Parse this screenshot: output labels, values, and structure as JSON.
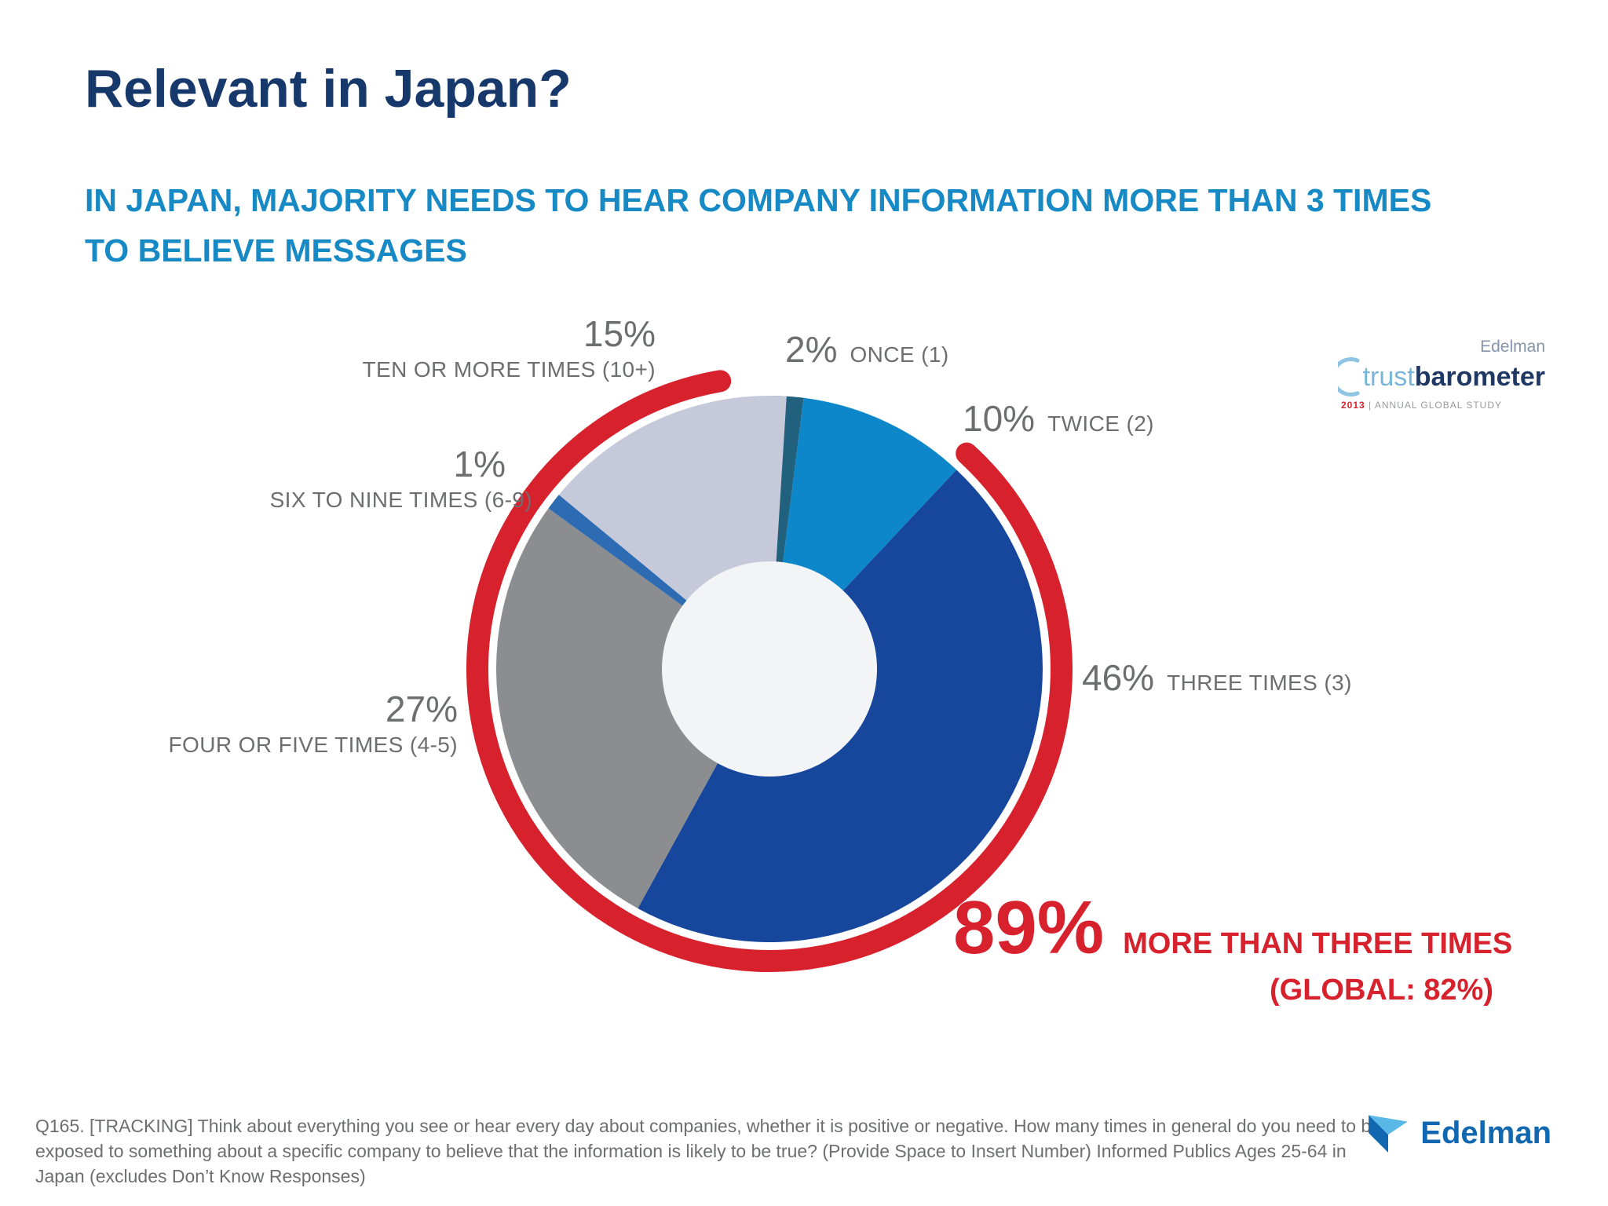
{
  "slide": {
    "title": "Relevant in Japan?",
    "subtitle_lines": [
      "IN JAPAN, MAJORITY NEEDS TO HEAR COMPANY INFORMATION MORE THAN 3 TIMES",
      "TO BELIEVE MESSAGES"
    ],
    "footnote": "Q165. [TRACKING] Think about everything you see or hear every day about companies, whether it is positive or negative.  How many times in general do you need to be exposed to something about a specific company to believe that the information is likely to be true? (Provide Space to Insert Number) Informed Publics Ages 25-64 in Japan (excludes Don’t Know Responses)"
  },
  "theme": {
    "title_color": "#17386b",
    "subtitle_color": "#1789c5",
    "label_color": "#6d6e70",
    "highlight_color": "#d7222d"
  },
  "trustbarometer_logo": {
    "edelman": "Edelman",
    "trust": "trust",
    "barometer": "barometer",
    "year": "2013",
    "tagline": "| ANNUAL GLOBAL STUDY"
  },
  "edelman_logo": {
    "label": "Edelman"
  },
  "chart_data": {
    "type": "pie",
    "units": "percent",
    "total": 100,
    "start_angle_deg": 0,
    "direction": "clockwise",
    "hole_color": "#f3f4f6",
    "segments": [
      {
        "key": "once",
        "label": "ONCE (1)",
        "value": 2,
        "pct_label": "2%",
        "color": "#22617e"
      },
      {
        "key": "twice",
        "label": "TWICE (2)",
        "value": 10,
        "pct_label": "10%",
        "color": "#0d87c9"
      },
      {
        "key": "three-times",
        "label": "THREE TIMES (3)",
        "value": 46,
        "pct_label": "46%",
        "color": "#16479d"
      },
      {
        "key": "four-five",
        "label": "FOUR OR FIVE TIMES (4-5)",
        "value": 27,
        "pct_label": "27%",
        "color": "#8b8d90"
      },
      {
        "key": "six-nine",
        "label": "SIX TO NINE TIMES (6-9)",
        "value": 1,
        "pct_label": "1%",
        "color": "#2d6bb2"
      },
      {
        "key": "ten-plus",
        "label": "TEN OR MORE TIMES (10+)",
        "value": 15,
        "pct_label": "15%",
        "color": "#c6c9da"
      }
    ],
    "highlight_ring": {
      "pct_label": "89%",
      "label": "MORE THAN THREE TIMES",
      "sublabel": "(GLOBAL: 82%)",
      "covers_value": 89,
      "start_pct": 11.8,
      "end_pct": 97.3,
      "color": "#d7222d"
    }
  }
}
